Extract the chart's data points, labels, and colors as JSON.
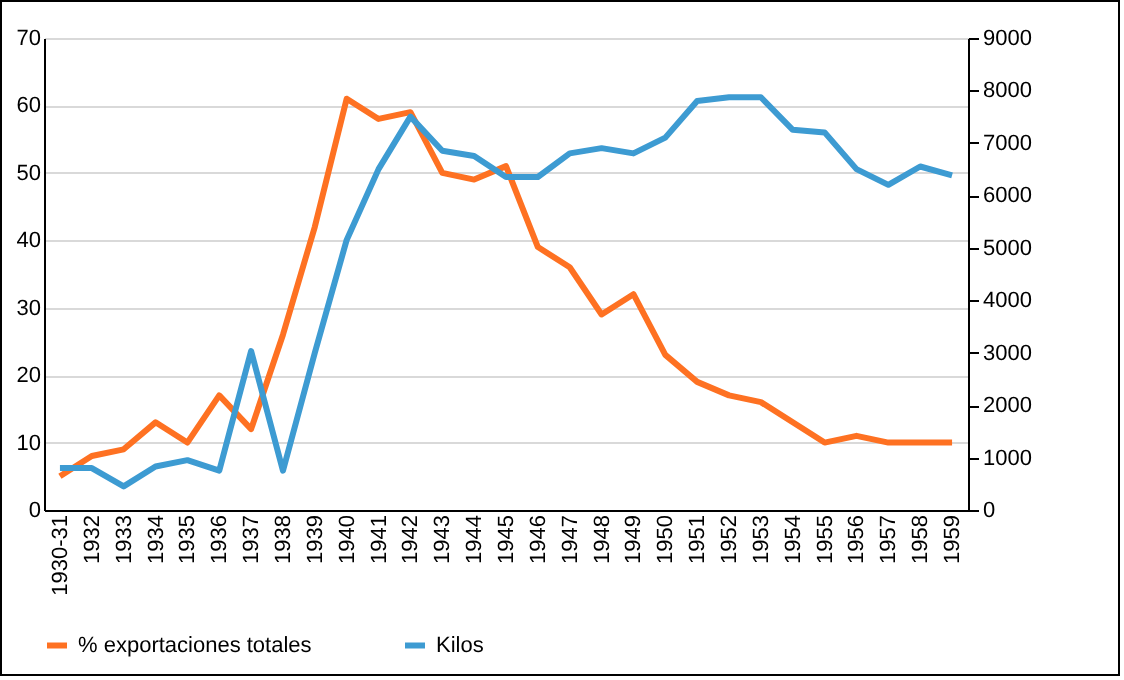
{
  "chart_data": {
    "type": "line",
    "categories": [
      "1930-31",
      "1932",
      "1933",
      "1934",
      "1935",
      "1936",
      "1937",
      "1938",
      "1939",
      "1940",
      "1941",
      "1942",
      "1943",
      "1944",
      "1945",
      "1946",
      "1947",
      "1948",
      "1949",
      "1950",
      "1951",
      "1952",
      "1953",
      "1954",
      "1955",
      "1956",
      "1957",
      "1958",
      "1959"
    ],
    "series": [
      {
        "name": "% exportaciones totales",
        "color": "#fe7122",
        "values": [
          5,
          8,
          9,
          13,
          10,
          17,
          12,
          26,
          42,
          61,
          58,
          59,
          50,
          49,
          51,
          39,
          36,
          29,
          32,
          23,
          19,
          17,
          16,
          13,
          10,
          11,
          10,
          10,
          10
        ]
      },
      {
        "name": "Kilos",
        "color": "#3d9bd2",
        "axis": "y2",
        "values": [
          800,
          800,
          450,
          830,
          950,
          750,
          3030,
          750,
          3000,
          5150,
          6500,
          7500,
          6850,
          6750,
          6350,
          6350,
          6800,
          6900,
          6800,
          7100,
          7800,
          7870,
          7870,
          7250,
          7200,
          6500,
          6200,
          6550,
          6380
        ]
      }
    ],
    "ylim": [
      0,
      70
    ],
    "yticks": [
      0,
      10,
      20,
      30,
      40,
      50,
      60,
      70
    ],
    "y2lim": [
      0,
      9000
    ],
    "y2ticks": [
      0,
      1000,
      2000,
      3000,
      4000,
      5000,
      6000,
      7000,
      8000,
      9000
    ],
    "grid": "y",
    "legend": "bottom",
    "marker": "none",
    "line_style": "solid"
  }
}
